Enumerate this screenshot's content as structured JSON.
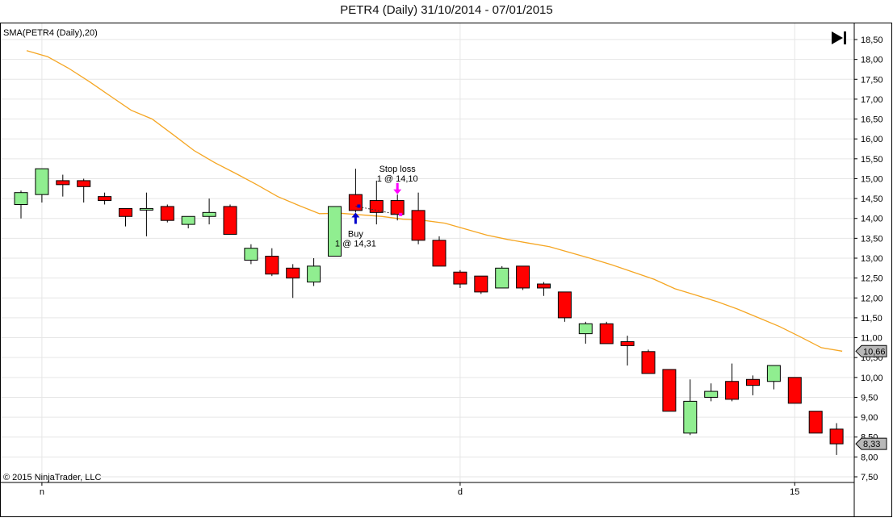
{
  "header": {
    "title": "PETR4 (Daily)  31/10/2014 - 07/01/2015"
  },
  "indicator_label": "SMA(PETR4 (Daily),20)",
  "copyright": "© 2015 NinjaTrader, LLC",
  "toolbar": {
    "play_icon": "skip-to-end-icon"
  },
  "colors": {
    "up": "#90EE90",
    "down": "#FF0000",
    "sma": "#F5A623",
    "border": "#000000",
    "grid": "#E6E6E6",
    "marker_buy": "#0000CC",
    "marker_stop": "#FF00FF",
    "price_tag_fill": "#B8B8B8"
  },
  "chart_data": {
    "type": "candlestick",
    "title": "PETR4 (Daily)  31/10/2014 - 07/01/2015",
    "ylim": [
      7.5,
      18.7
    ],
    "y_ticks": [
      "18,50",
      "18,00",
      "17,50",
      "17,00",
      "16,50",
      "16,00",
      "15,50",
      "15,00",
      "14,50",
      "14,00",
      "13,50",
      "13,00",
      "12,50",
      "12,00",
      "11,50",
      "11,00",
      "10,50",
      "10,00",
      "9,50",
      "9,00",
      "8,50",
      "8,00",
      "7,50"
    ],
    "y_tick_values": [
      18.5,
      18,
      17.5,
      17,
      16.5,
      16,
      15.5,
      15,
      14.5,
      14,
      13.5,
      13,
      12.5,
      12,
      11.5,
      11,
      10.5,
      10,
      9.5,
      9,
      8.5,
      8,
      7.5
    ],
    "x_labels": [
      {
        "label": "n",
        "bar_index": 1
      },
      {
        "label": "d",
        "bar_index": 21
      },
      {
        "label": "15",
        "bar_index": 37
      }
    ],
    "candles": [
      {
        "o": 14.35,
        "h": 14.7,
        "l": 14.0,
        "c": 14.65
      },
      {
        "o": 14.6,
        "h": 15.25,
        "l": 14.4,
        "c": 15.25
      },
      {
        "o": 14.95,
        "h": 15.1,
        "l": 14.55,
        "c": 14.85
      },
      {
        "o": 14.95,
        "h": 15.0,
        "l": 14.4,
        "c": 14.8
      },
      {
        "o": 14.55,
        "h": 14.65,
        "l": 14.35,
        "c": 14.45
      },
      {
        "o": 14.25,
        "h": 14.25,
        "l": 13.8,
        "c": 14.05
      },
      {
        "o": 14.25,
        "h": 14.65,
        "l": 13.55,
        "c": 14.25
      },
      {
        "o": 14.3,
        "h": 14.35,
        "l": 13.9,
        "c": 13.95
      },
      {
        "o": 13.85,
        "h": 14.05,
        "l": 13.75,
        "c": 14.05
      },
      {
        "o": 14.05,
        "h": 14.5,
        "l": 13.85,
        "c": 14.15
      },
      {
        "o": 14.3,
        "h": 14.35,
        "l": 13.6,
        "c": 13.6
      },
      {
        "o": 12.95,
        "h": 13.35,
        "l": 12.85,
        "c": 13.25
      },
      {
        "o": 13.05,
        "h": 13.25,
        "l": 12.55,
        "c": 12.6
      },
      {
        "o": 12.75,
        "h": 12.85,
        "l": 12.0,
        "c": 12.5
      },
      {
        "o": 12.4,
        "h": 13.0,
        "l": 12.3,
        "c": 12.8
      },
      {
        "o": 13.05,
        "h": 14.3,
        "l": 13.05,
        "c": 14.3
      },
      {
        "o": 14.6,
        "h": 15.25,
        "l": 14.15,
        "c": 14.2
      },
      {
        "o": 14.45,
        "h": 14.95,
        "l": 13.85,
        "c": 14.15
      },
      {
        "o": 14.45,
        "h": 14.6,
        "l": 13.95,
        "c": 14.1
      },
      {
        "o": 14.2,
        "h": 14.65,
        "l": 13.35,
        "c": 13.45
      },
      {
        "o": 13.45,
        "h": 13.55,
        "l": 12.8,
        "c": 12.8
      },
      {
        "o": 12.65,
        "h": 12.7,
        "l": 12.25,
        "c": 12.35
      },
      {
        "o": 12.55,
        "h": 12.55,
        "l": 12.1,
        "c": 12.15
      },
      {
        "o": 12.25,
        "h": 12.8,
        "l": 12.25,
        "c": 12.75
      },
      {
        "o": 12.8,
        "h": 12.8,
        "l": 12.2,
        "c": 12.25
      },
      {
        "o": 12.35,
        "h": 12.4,
        "l": 12.05,
        "c": 12.25
      },
      {
        "o": 12.15,
        "h": 12.15,
        "l": 11.4,
        "c": 11.5
      },
      {
        "o": 11.1,
        "h": 11.4,
        "l": 10.85,
        "c": 11.35
      },
      {
        "o": 11.35,
        "h": 11.4,
        "l": 10.85,
        "c": 10.85
      },
      {
        "o": 10.9,
        "h": 11.05,
        "l": 10.3,
        "c": 10.8
      },
      {
        "o": 10.65,
        "h": 10.7,
        "l": 10.1,
        "c": 10.1
      },
      {
        "o": 10.2,
        "h": 10.2,
        "l": 9.15,
        "c": 9.15
      },
      {
        "o": 8.6,
        "h": 9.95,
        "l": 8.55,
        "c": 9.4
      },
      {
        "o": 9.5,
        "h": 9.85,
        "l": 9.4,
        "c": 9.65
      },
      {
        "o": 9.9,
        "h": 10.35,
        "l": 9.4,
        "c": 9.45
      },
      {
        "o": 9.95,
        "h": 10.05,
        "l": 9.55,
        "c": 9.8
      },
      {
        "o": 9.9,
        "h": 10.3,
        "l": 9.7,
        "c": 10.3
      },
      {
        "o": 10.0,
        "h": 10.0,
        "l": 9.35,
        "c": 9.35
      },
      {
        "o": 9.15,
        "h": 9.15,
        "l": 8.6,
        "c": 8.6
      },
      {
        "o": 8.7,
        "h": 8.85,
        "l": 8.05,
        "c": 8.33
      }
    ],
    "series": [
      {
        "name": "SMA(PETR4 (Daily),20)",
        "values": [
          18.22,
          18.07,
          17.78,
          17.44,
          17.08,
          16.72,
          16.5,
          16.11,
          15.71,
          15.4,
          15.13,
          14.85,
          14.55,
          14.33,
          14.12,
          14.13,
          14.09,
          14.05,
          13.98,
          13.95,
          13.88,
          13.73,
          13.58,
          13.47,
          13.38,
          13.29,
          13.14,
          12.99,
          12.83,
          12.65,
          12.47,
          12.23,
          12.07,
          11.91,
          11.72,
          11.5,
          11.28,
          11.02,
          10.75,
          10.66
        ]
      }
    ],
    "price_tags": [
      {
        "label": "10,66",
        "value": 10.66
      },
      {
        "label": "8,33",
        "value": 8.33
      }
    ],
    "annotations": [
      {
        "type": "buy",
        "bar_index": 16,
        "value": 14.31,
        "label_line1": "Buy",
        "label_line2": "1 @ 14,31"
      },
      {
        "type": "stop",
        "bar_index": 18,
        "value": 14.1,
        "label_line1": "Stop loss",
        "label_line2": "1 @ 14,10"
      }
    ]
  }
}
